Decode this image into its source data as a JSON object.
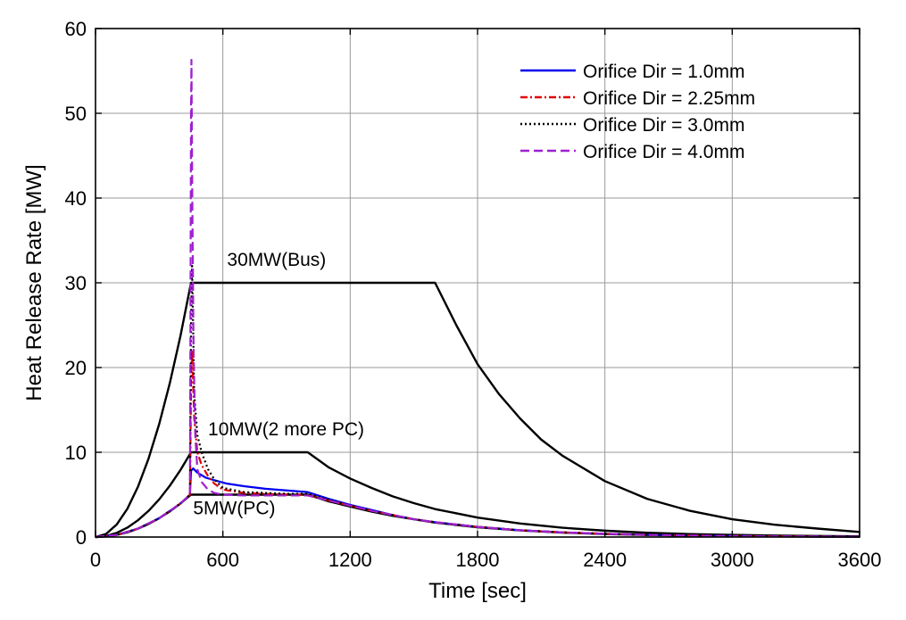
{
  "chart_data": {
    "type": "line",
    "title": "",
    "xlabel": "Time [sec]",
    "ylabel": "Heat Release Rate [MW]",
    "xlim": [
      0,
      3600
    ],
    "ylim": [
      0,
      60
    ],
    "xticks": [
      0,
      600,
      1200,
      1800,
      2400,
      3000,
      3600
    ],
    "yticks": [
      0,
      10,
      20,
      30,
      40,
      50,
      60
    ],
    "xtick_labels": [
      "0",
      "600",
      "1200",
      "1800",
      "2400",
      "3000",
      "3600"
    ],
    "ytick_labels": [
      "0",
      "10",
      "20",
      "30",
      "40",
      "50",
      "60"
    ],
    "grid": true,
    "legend_position": "top-right",
    "annotations": [
      {
        "text": "30MW(Bus)",
        "x": 620,
        "y": 32
      },
      {
        "text": "10MW(2 more PC)",
        "x": 530,
        "y": 12
      },
      {
        "text": "5MW(PC)",
        "x": 460,
        "y": 2.7
      }
    ],
    "reference_curves": [
      {
        "label": "30MW(Bus)",
        "color": "#000000",
        "x": [
          0,
          50,
          100,
          150,
          200,
          250,
          300,
          350,
          400,
          450,
          700,
          1000,
          1300,
          1600,
          1700,
          1800,
          1900,
          2000,
          2100,
          2200,
          2400,
          2600,
          2800,
          3000,
          3200,
          3400,
          3600
        ],
        "y": [
          0,
          0.37,
          1.48,
          3.33,
          5.93,
          9.26,
          13.33,
          18.15,
          23.7,
          30,
          30,
          30,
          30,
          30,
          25.0,
          20.4,
          16.9,
          14.0,
          11.5,
          9.6,
          6.6,
          4.5,
          3.1,
          2.1,
          1.45,
          1.0,
          0.6
        ]
      },
      {
        "label": "10MW(2 more PC)",
        "color": "#000000",
        "x": [
          0,
          50,
          100,
          150,
          200,
          250,
          300,
          350,
          400,
          450,
          600,
          800,
          1000,
          1100,
          1200,
          1300,
          1400,
          1500,
          1600,
          1800,
          2000,
          2200,
          2400,
          2600,
          2800,
          3000,
          3200,
          3600
        ],
        "y": [
          0,
          0.12,
          0.49,
          1.11,
          1.98,
          3.09,
          4.44,
          6.05,
          7.9,
          10,
          10,
          10,
          10,
          8.2,
          6.9,
          5.8,
          4.8,
          4.0,
          3.3,
          2.3,
          1.6,
          1.1,
          0.75,
          0.5,
          0.35,
          0.25,
          0.17,
          0.08
        ]
      },
      {
        "label": "5MW(PC)",
        "color": "#000000",
        "x": [
          0,
          50,
          100,
          150,
          200,
          250,
          300,
          350,
          400,
          450,
          600,
          800,
          1000,
          1100,
          1200,
          1300,
          1400,
          1500,
          1600,
          1800,
          2000,
          2200,
          2400,
          2600,
          2800,
          3000,
          3200,
          3600
        ],
        "y": [
          0,
          0.06,
          0.25,
          0.56,
          0.99,
          1.54,
          2.22,
          3.02,
          3.95,
          5,
          5,
          5,
          5,
          4.2,
          3.6,
          3.0,
          2.5,
          2.1,
          1.7,
          1.15,
          0.78,
          0.52,
          0.35,
          0.24,
          0.16,
          0.11,
          0.07,
          0.03
        ]
      }
    ],
    "series": [
      {
        "name": "Orifice Dir = 1.0mm",
        "color": "#0000ee",
        "dash": "",
        "x": [
          0,
          100,
          200,
          300,
          400,
          445,
          450,
          460,
          480,
          520,
          560,
          620,
          700,
          800,
          900,
          1000,
          1100,
          1200,
          1300,
          1400,
          1500,
          1600,
          1800,
          2000,
          2200,
          2400,
          2600,
          2800,
          3000,
          3200,
          3600
        ],
        "y": [
          0,
          0.25,
          0.99,
          2.22,
          3.95,
          5,
          7.8,
          8.1,
          7.6,
          7.0,
          6.7,
          6.3,
          6.0,
          5.7,
          5.5,
          5.3,
          4.5,
          3.8,
          3.2,
          2.6,
          2.1,
          1.75,
          1.2,
          0.8,
          0.55,
          0.38,
          0.26,
          0.18,
          0.12,
          0.08,
          0.03
        ]
      },
      {
        "name": "Orifice Dir = 2.25mm",
        "color": "#e00000",
        "dash": "8,3,2,3",
        "x": [
          0,
          100,
          200,
          300,
          400,
          445,
          450,
          455,
          465,
          480,
          500,
          530,
          560,
          600,
          700,
          800,
          900,
          1000,
          1100,
          1200,
          1300,
          1400,
          1500,
          1600,
          1800,
          2000,
          2200,
          2400,
          2600,
          2800,
          3000,
          3200,
          3600
        ],
        "y": [
          0,
          0.25,
          0.99,
          2.22,
          3.95,
          5,
          18,
          22,
          14,
          10,
          8.5,
          7.2,
          6.3,
          5.6,
          5.2,
          5.1,
          5.0,
          5.0,
          4.3,
          3.7,
          3.1,
          2.6,
          2.1,
          1.75,
          1.2,
          0.8,
          0.55,
          0.38,
          0.26,
          0.18,
          0.12,
          0.08,
          0.03
        ]
      },
      {
        "name": "Orifice Dir = 3.0mm",
        "color": "#000000",
        "dash": "2,3",
        "x": [
          0,
          100,
          200,
          300,
          400,
          445,
          450,
          455,
          465,
          480,
          500,
          530,
          560,
          600,
          700,
          800,
          900,
          1000,
          1100,
          1200,
          1300,
          1400,
          1500,
          1600,
          1800,
          2000,
          2200,
          2400,
          2600,
          2800,
          3000,
          3200,
          3600
        ],
        "y": [
          0,
          0.25,
          0.99,
          2.22,
          3.95,
          5,
          25,
          32,
          17,
          12,
          10,
          8,
          6.8,
          5.8,
          5.3,
          5.2,
          5.1,
          5.1,
          4.4,
          3.7,
          3.1,
          2.6,
          2.1,
          1.75,
          1.2,
          0.8,
          0.55,
          0.38,
          0.26,
          0.18,
          0.12,
          0.08,
          0.03
        ]
      },
      {
        "name": "Orifice Dir = 4.0mm",
        "color": "#a020d0",
        "dash": "10,5",
        "x": [
          0,
          100,
          200,
          300,
          400,
          445,
          450,
          452,
          456,
          462,
          470,
          480,
          500,
          530,
          560,
          600,
          700,
          800,
          900,
          1000,
          1100,
          1200,
          1300,
          1400,
          1500,
          1600,
          1800,
          2000,
          2200,
          2400,
          2600,
          2800,
          3000,
          3200,
          3600
        ],
        "y": [
          0,
          0.25,
          0.99,
          2.22,
          3.95,
          5,
          50,
          56.3,
          40,
          22,
          12,
          8,
          6.5,
          5.6,
          5.2,
          5.0,
          4.9,
          4.9,
          4.9,
          4.9,
          4.3,
          3.7,
          3.1,
          2.6,
          2.1,
          1.75,
          1.2,
          0.8,
          0.55,
          0.38,
          0.26,
          0.18,
          0.12,
          0.08,
          0.03
        ]
      }
    ]
  }
}
